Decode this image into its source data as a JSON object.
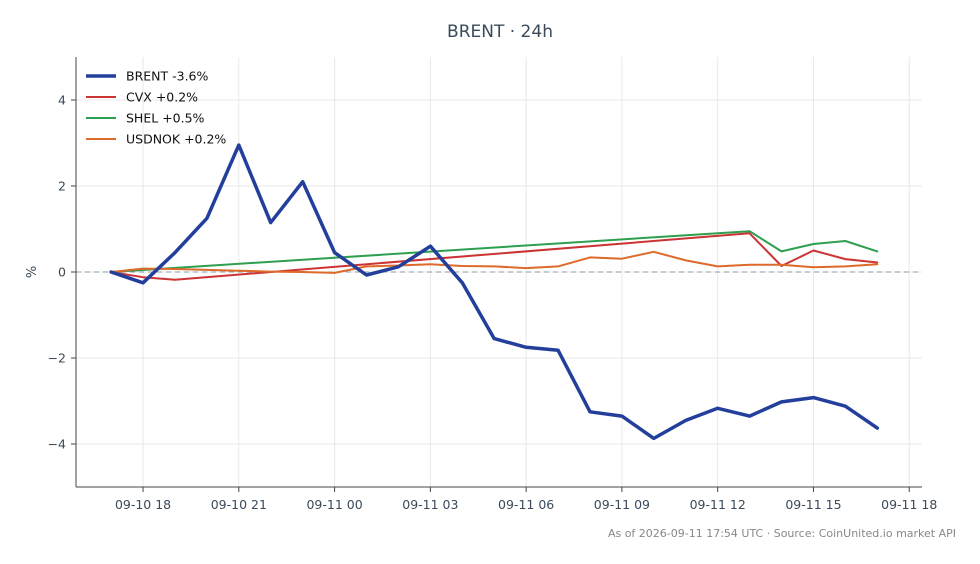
{
  "chart_data": {
    "type": "line",
    "title": "BRENT · 24h",
    "xlabel": "",
    "ylabel": "%",
    "x_ticks": [
      "09-10 18",
      "09-10 21",
      "09-11 00",
      "09-11 03",
      "09-11 06",
      "09-11 09",
      "09-11 12",
      "09-11 15",
      "09-11 18"
    ],
    "y_ticks": [
      "−4",
      "−2",
      "0",
      "2",
      "4"
    ],
    "xlim": [
      "2026-09-10 15:54",
      "2026-09-11 18:24"
    ],
    "ylim": [
      -5,
      5
    ],
    "grid": true,
    "zero_line": true,
    "legend_position": "top-left",
    "series": [
      {
        "name": "BRENT -3.6%",
        "color": "#233f9b",
        "points": [
          [
            "2026-09-10 17:00",
            0.0
          ],
          [
            "2026-09-10 18:00",
            -0.25
          ],
          [
            "2026-09-10 19:00",
            0.45
          ],
          [
            "2026-09-10 20:00",
            1.25
          ],
          [
            "2026-09-10 21:00",
            2.95
          ],
          [
            "2026-09-10 22:00",
            1.15
          ],
          [
            "2026-09-10 23:00",
            2.1
          ],
          [
            "2026-09-11 00:00",
            0.45
          ],
          [
            "2026-09-11 01:00",
            -0.07
          ],
          [
            "2026-09-11 02:00",
            0.12
          ],
          [
            "2026-09-11 03:00",
            0.6
          ],
          [
            "2026-09-11 04:00",
            -0.25
          ],
          [
            "2026-09-11 05:00",
            -1.55
          ],
          [
            "2026-09-11 06:00",
            -1.75
          ],
          [
            "2026-09-11 07:00",
            -1.82
          ],
          [
            "2026-09-11 08:00",
            -3.25
          ],
          [
            "2026-09-11 09:00",
            -3.35
          ],
          [
            "2026-09-11 10:00",
            -3.87
          ],
          [
            "2026-09-11 11:00",
            -3.45
          ],
          [
            "2026-09-11 12:00",
            -3.17
          ],
          [
            "2026-09-11 13:00",
            -3.35
          ],
          [
            "2026-09-11 14:00",
            -3.02
          ],
          [
            "2026-09-11 15:00",
            -2.92
          ],
          [
            "2026-09-11 16:00",
            -3.12
          ],
          [
            "2026-09-11 17:00",
            -3.63
          ]
        ]
      },
      {
        "name": "CVX +0.2%",
        "color": "#cc3333",
        "points": [
          [
            "2026-09-10 17:00",
            0.0
          ],
          [
            "2026-09-10 18:00",
            -0.12
          ],
          [
            "2026-09-10 19:00",
            -0.18
          ],
          [
            "2026-09-11 13:00",
            0.9
          ],
          [
            "2026-09-11 14:00",
            0.14
          ],
          [
            "2026-09-11 15:00",
            0.5
          ],
          [
            "2026-09-11 16:00",
            0.3
          ],
          [
            "2026-09-11 17:00",
            0.22
          ]
        ]
      },
      {
        "name": "SHEL +0.5%",
        "color": "#2e9e4f",
        "points": [
          [
            "2026-09-10 17:00",
            0.0
          ],
          [
            "2026-09-11 13:00",
            0.95
          ],
          [
            "2026-09-11 14:00",
            0.48
          ],
          [
            "2026-09-11 15:00",
            0.65
          ],
          [
            "2026-09-11 16:00",
            0.72
          ],
          [
            "2026-09-11 17:00",
            0.48
          ]
        ]
      },
      {
        "name": "USDNOK +0.2%",
        "color": "#dd6a2a",
        "points": [
          [
            "2026-09-10 17:00",
            0.0
          ],
          [
            "2026-09-10 18:00",
            0.08
          ],
          [
            "2026-09-10 19:00",
            0.07
          ],
          [
            "2026-09-10 20:00",
            0.05
          ],
          [
            "2026-09-10 21:00",
            0.03
          ],
          [
            "2026-09-10 22:00",
            0.01
          ],
          [
            "2026-09-10 23:00",
            0.0
          ],
          [
            "2026-09-11 00:00",
            -0.02
          ],
          [
            "2026-09-11 01:00",
            0.13
          ],
          [
            "2026-09-11 02:00",
            0.15
          ],
          [
            "2026-09-11 03:00",
            0.18
          ],
          [
            "2026-09-11 04:00",
            0.14
          ],
          [
            "2026-09-11 05:00",
            0.13
          ],
          [
            "2026-09-11 06:00",
            0.09
          ],
          [
            "2026-09-11 07:00",
            0.13
          ],
          [
            "2026-09-11 08:00",
            0.34
          ],
          [
            "2026-09-11 09:00",
            0.31
          ],
          [
            "2026-09-11 10:00",
            0.47
          ],
          [
            "2026-09-11 11:00",
            0.27
          ],
          [
            "2026-09-11 12:00",
            0.13
          ],
          [
            "2026-09-11 13:00",
            0.17
          ],
          [
            "2026-09-11 14:00",
            0.17
          ],
          [
            "2026-09-11 15:00",
            0.11
          ],
          [
            "2026-09-11 16:00",
            0.13
          ],
          [
            "2026-09-11 17:00",
            0.18
          ]
        ]
      }
    ]
  },
  "footer": "As of 2026-09-11 17:54 UTC · Source: CoinUnited.io market API"
}
